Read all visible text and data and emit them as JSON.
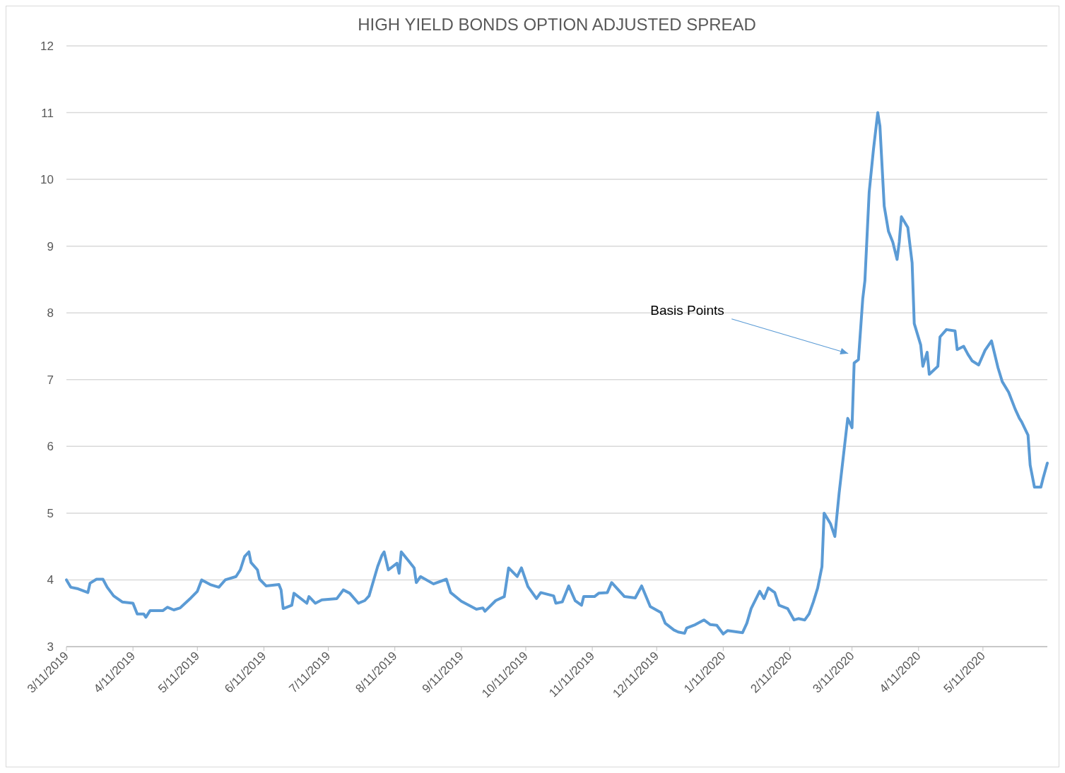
{
  "chart_data": {
    "type": "line",
    "title": "HIGH YIELD BONDS OPTION ADJUSTED SPREAD",
    "xlim": [
      "2019-03-11",
      "2020-06-10"
    ],
    "xticks": [
      {
        "value": "2019-03-11",
        "label": "3/11/2019"
      },
      {
        "value": "2019-04-11",
        "label": "4/11/2019"
      },
      {
        "value": "2019-05-11",
        "label": "5/11/2019"
      },
      {
        "value": "2019-06-11",
        "label": "6/11/2019"
      },
      {
        "value": "2019-07-11",
        "label": "7/11/2019"
      },
      {
        "value": "2019-08-11",
        "label": "8/11/2019"
      },
      {
        "value": "2019-09-11",
        "label": "9/11/2019"
      },
      {
        "value": "2019-10-11",
        "label": "10/11/2019"
      },
      {
        "value": "2019-11-11",
        "label": "11/11/2019"
      },
      {
        "value": "2019-12-11",
        "label": "12/11/2019"
      },
      {
        "value": "2020-01-11",
        "label": "1/11/2020"
      },
      {
        "value": "2020-02-11",
        "label": "2/11/2020"
      },
      {
        "value": "2020-03-11",
        "label": "3/11/2020"
      },
      {
        "value": "2020-04-11",
        "label": "4/11/2020"
      },
      {
        "value": "2020-05-11",
        "label": "5/11/2020"
      }
    ],
    "ylim": [
      3,
      12
    ],
    "yticks": [
      3,
      4,
      5,
      6,
      7,
      8,
      9,
      10,
      11,
      12
    ],
    "grid": "y",
    "annotations": [
      "Basis Points"
    ],
    "series": [
      {
        "color": "#5b9bd5",
        "x": [
          "2019-03-11",
          "2019-03-13",
          "2019-03-16",
          "2019-03-21",
          "2019-03-22",
          "2019-03-25",
          "2019-03-28",
          "2019-03-30",
          "2019-04-02",
          "2019-04-06",
          "2019-04-11",
          "2019-04-13",
          "2019-04-16",
          "2019-04-17",
          "2019-04-19",
          "2019-04-25",
          "2019-04-27",
          "2019-04-30",
          "2019-05-03",
          "2019-05-08",
          "2019-05-11",
          "2019-05-13",
          "2019-05-17",
          "2019-05-21",
          "2019-05-24",
          "2019-05-29",
          "2019-05-31",
          "2019-06-02",
          "2019-06-04",
          "2019-06-05",
          "2019-06-08",
          "2019-06-09",
          "2019-06-12",
          "2019-06-18",
          "2019-06-19",
          "2019-06-20",
          "2019-06-24",
          "2019-06-25",
          "2019-07-01",
          "2019-07-02",
          "2019-07-05",
          "2019-07-08",
          "2019-07-15",
          "2019-07-18",
          "2019-07-21",
          "2019-07-25",
          "2019-07-28",
          "2019-07-30",
          "2019-08-03",
          "2019-08-05",
          "2019-08-06",
          "2019-08-08",
          "2019-08-12",
          "2019-08-13",
          "2019-08-14",
          "2019-08-18",
          "2019-08-20",
          "2019-08-21",
          "2019-08-23",
          "2019-08-29",
          "2019-09-04",
          "2019-09-06",
          "2019-09-11",
          "2019-09-18",
          "2019-09-21",
          "2019-09-22",
          "2019-09-27",
          "2019-10-01",
          "2019-10-03",
          "2019-10-07",
          "2019-10-09",
          "2019-10-12",
          "2019-10-16",
          "2019-10-18",
          "2019-10-24",
          "2019-10-25",
          "2019-10-28",
          "2019-10-31",
          "2019-11-03",
          "2019-11-06",
          "2019-11-07",
          "2019-11-12",
          "2019-11-14",
          "2019-11-18",
          "2019-11-20",
          "2019-11-26",
          "2019-12-01",
          "2019-12-04",
          "2019-12-08",
          "2019-12-13",
          "2019-12-15",
          "2019-12-19",
          "2019-12-21",
          "2019-12-24",
          "2019-12-25",
          "2019-12-29",
          "2020-01-02",
          "2020-01-05",
          "2020-01-08",
          "2020-01-11",
          "2020-01-13",
          "2020-01-20",
          "2020-01-22",
          "2020-01-24",
          "2020-01-28",
          "2020-01-30",
          "2020-02-01",
          "2020-02-04",
          "2020-02-06",
          "2020-02-10",
          "2020-02-13",
          "2020-02-15",
          "2020-02-18",
          "2020-02-20",
          "2020-02-22",
          "2020-02-24",
          "2020-02-26",
          "2020-02-27",
          "2020-03-01",
          "2020-03-03",
          "2020-03-05",
          "2020-03-07",
          "2020-03-09",
          "2020-03-11",
          "2020-03-12",
          "2020-03-14",
          "2020-03-16",
          "2020-03-17",
          "2020-03-19",
          "2020-03-21",
          "2020-03-23",
          "2020-03-24",
          "2020-03-26",
          "2020-03-28",
          "2020-03-30",
          "2020-04-01",
          "2020-04-02",
          "2020-04-03",
          "2020-04-06",
          "2020-04-08",
          "2020-04-09",
          "2020-04-12",
          "2020-04-13",
          "2020-04-15",
          "2020-04-16",
          "2020-04-20",
          "2020-04-21",
          "2020-04-24",
          "2020-04-28",
          "2020-04-29",
          "2020-05-02",
          "2020-05-04",
          "2020-05-06",
          "2020-05-09",
          "2020-05-12",
          "2020-05-15",
          "2020-05-18",
          "2020-05-20",
          "2020-05-23",
          "2020-05-26",
          "2020-05-28",
          "2020-05-29",
          "2020-06-01",
          "2020-06-02",
          "2020-06-04",
          "2020-06-07",
          "2020-06-08",
          "2020-06-10"
        ],
        "values": [
          4.0,
          3.89,
          3.87,
          3.81,
          3.95,
          4.01,
          4.01,
          3.89,
          3.76,
          3.67,
          3.65,
          3.49,
          3.49,
          3.44,
          3.54,
          3.54,
          3.59,
          3.55,
          3.58,
          3.73,
          3.83,
          4.0,
          3.93,
          3.89,
          4.0,
          4.05,
          4.15,
          4.35,
          4.42,
          4.26,
          4.15,
          4.01,
          3.91,
          3.93,
          3.85,
          3.57,
          3.62,
          3.8,
          3.65,
          3.75,
          3.65,
          3.7,
          3.72,
          3.85,
          3.8,
          3.65,
          3.69,
          3.76,
          4.2,
          4.37,
          4.42,
          4.15,
          4.25,
          4.1,
          4.42,
          4.26,
          4.18,
          3.96,
          4.05,
          3.94,
          4.01,
          3.81,
          3.68,
          3.56,
          3.58,
          3.53,
          3.69,
          3.75,
          4.18,
          4.05,
          4.18,
          3.9,
          3.72,
          3.81,
          3.76,
          3.65,
          3.67,
          3.91,
          3.69,
          3.62,
          3.75,
          3.75,
          3.8,
          3.81,
          3.96,
          3.75,
          3.73,
          3.91,
          3.6,
          3.51,
          3.35,
          3.25,
          3.22,
          3.2,
          3.28,
          3.33,
          3.4,
          3.33,
          3.32,
          3.19,
          3.24,
          3.21,
          3.35,
          3.57,
          3.83,
          3.72,
          3.88,
          3.81,
          3.62,
          3.57,
          3.4,
          3.42,
          3.4,
          3.49,
          3.67,
          3.88,
          4.2,
          5.0,
          4.84,
          4.65,
          5.3,
          5.86,
          6.42,
          6.28,
          7.25,
          7.3,
          8.21,
          8.48,
          9.81,
          10.45,
          11.0,
          10.8,
          9.6,
          9.22,
          9.06,
          8.8,
          9.06,
          9.44,
          9.28,
          8.75,
          7.84,
          7.52,
          7.2,
          7.41,
          7.08,
          7.2,
          7.64,
          7.75,
          7.73,
          7.45,
          7.5,
          7.38,
          7.28,
          7.22,
          7.44,
          7.58,
          7.18,
          6.97,
          6.81,
          6.56,
          6.42,
          6.37,
          6.17,
          5.72,
          5.39,
          5.39,
          5.52,
          5.75
        ]
      }
    ]
  }
}
